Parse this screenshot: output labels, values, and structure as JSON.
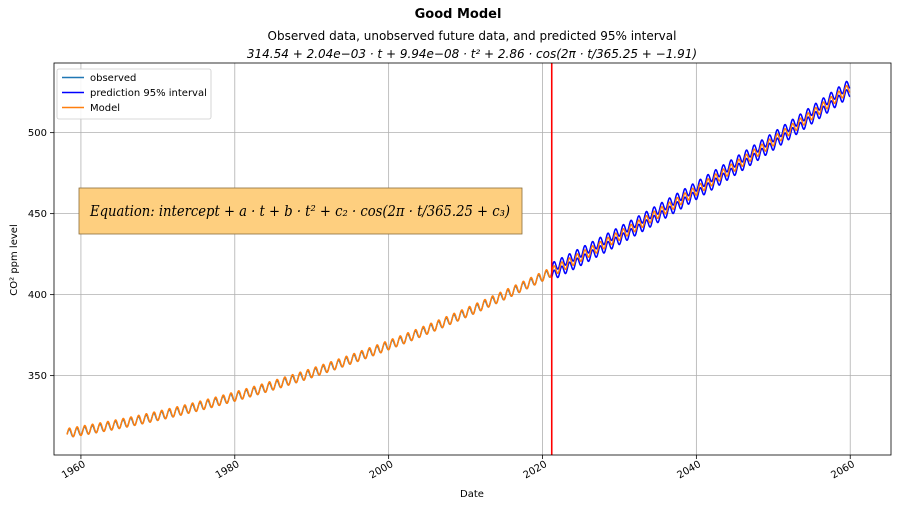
{
  "chart_data": {
    "type": "line",
    "title": "Good Model",
    "subtitle": "Observed data, unobserved future data, and predicted 95% interval",
    "formula": {
      "intercept": 314.54,
      "a": "2.04e-03",
      "b": "9.94e-08",
      "c2": 2.86,
      "period": 365.25,
      "c3": -1.91,
      "text": "314.54 + 2.04e−03 · t + 9.94e−08 · t² + 2.86 · cos(2π · t/365.25 + −1.91)"
    },
    "xlabel": "Date",
    "ylabel": "CO² ppm level",
    "xlim": [
      1956.5,
      2065.3
    ],
    "ylim": [
      301,
      543
    ],
    "x_ticks": [
      1960,
      1980,
      2000,
      2020,
      2040,
      2060
    ],
    "y_ticks": [
      350,
      400,
      450,
      500
    ],
    "grid": true,
    "legend_position": "top-left",
    "observed_range": [
      1958.2,
      2021.2
    ],
    "prediction_range": [
      2021.2,
      2060.0
    ],
    "split_date": 2021.2,
    "series": [
      {
        "name": "observed",
        "color": "#1f77b4",
        "description": "monthly observations 1958–2021"
      },
      {
        "name": "prediction 95% interval",
        "color": "#0000ff",
        "description": "upper and lower 95% prediction bounds 2021–2060"
      },
      {
        "name": "Model",
        "color": "#ff7f0e",
        "description": "fitted model 1958–2060"
      }
    ],
    "equation_box": {
      "text": "Equation: intercept + a · t + b · t² + c₂ · cos(2π · t/365.25 + c₃)",
      "background": "#fecf7f"
    },
    "vline_color": "#ff0000"
  }
}
